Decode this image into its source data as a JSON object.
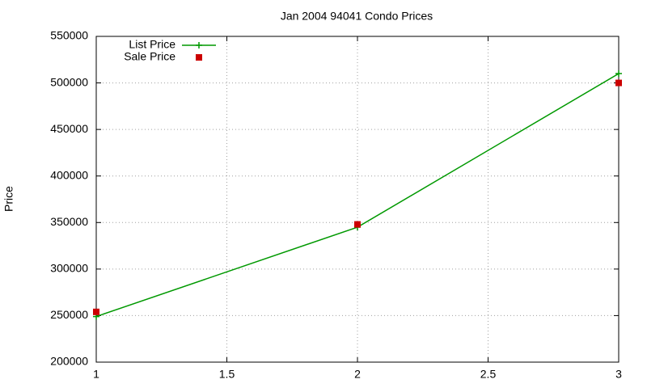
{
  "chart_data": {
    "type": "line",
    "title": "Jan 2004 94041 Condo Prices",
    "y_label": "Price",
    "x": [
      1,
      2,
      3
    ],
    "series": [
      {
        "name": "List Price",
        "color": "#009900",
        "marker": "plus",
        "line": true,
        "values": [
          249000,
          345000,
          510000
        ]
      },
      {
        "name": "Sale Price",
        "color": "#cc0000",
        "marker": "square",
        "line": false,
        "values": [
          254000,
          348000,
          500000
        ]
      }
    ],
    "xlim": [
      1,
      3
    ],
    "xticks": [
      1,
      1.5,
      2,
      2.5,
      3
    ],
    "ylim": [
      200000,
      550000
    ],
    "yticks": [
      200000,
      250000,
      300000,
      350000,
      400000,
      450000,
      500000,
      550000
    ],
    "grid": true,
    "legend": "top-left"
  }
}
